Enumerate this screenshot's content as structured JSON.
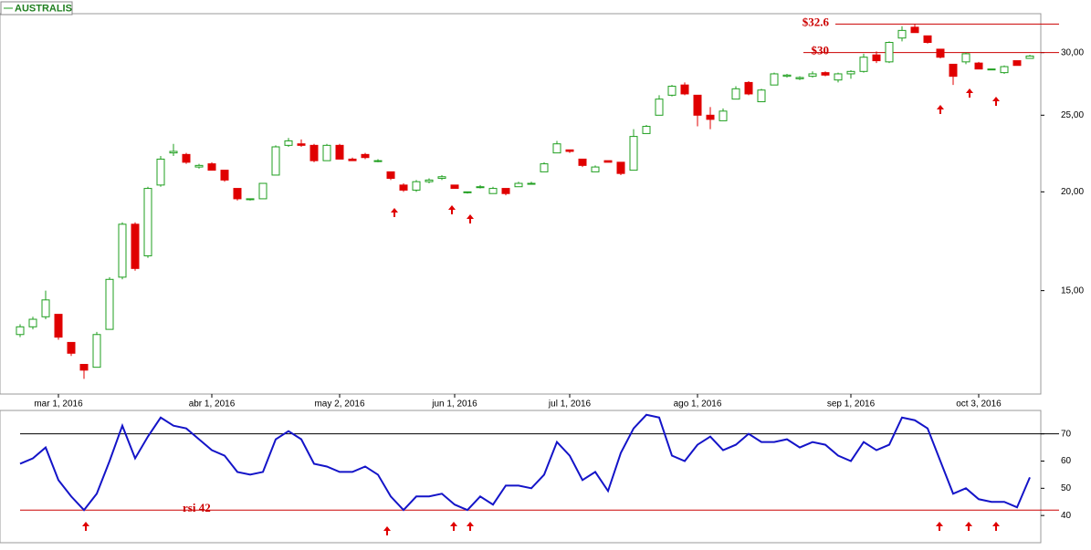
{
  "chart_data": [
    {
      "type": "candlestick",
      "name": "AUSTRALIS",
      "log_scale": true,
      "up_color": "#1f9f1f",
      "down_color": "#e00000",
      "categories": [
        null,
        null,
        null,
        "mar 1, 2016",
        null,
        null,
        null,
        null,
        null,
        null,
        null,
        null,
        null,
        null,
        null,
        "abr 1, 2016",
        null,
        null,
        null,
        null,
        null,
        null,
        null,
        null,
        null,
        "may 2, 2016",
        null,
        null,
        null,
        null,
        null,
        null,
        null,
        null,
        "jun 1, 2016",
        null,
        null,
        null,
        null,
        null,
        null,
        null,
        null,
        "jul 1, 2016",
        null,
        null,
        null,
        null,
        null,
        null,
        null,
        null,
        null,
        "ago 1, 2016",
        null,
        null,
        null,
        null,
        null,
        null,
        null,
        null,
        null,
        null,
        null,
        "sep 1, 2016",
        null,
        null,
        null,
        null,
        null,
        null,
        null,
        null,
        null,
        "oct 3, 2016",
        null,
        null,
        null,
        null
      ],
      "open": [
        13.2,
        13.5,
        13.9,
        14.0,
        12.9,
        12.1,
        12.0,
        13.4,
        15.6,
        18.2,
        16.6,
        20.4,
        22.4,
        22.3,
        21.5,
        21.7,
        21.3,
        20.2,
        19.6,
        19.6,
        21.0,
        22.9,
        23.0,
        22.9,
        21.9,
        22.9,
        22.0,
        22.3,
        21.9,
        21.2,
        20.4,
        20.1,
        20.6,
        20.8,
        20.4,
        20.0,
        20.3,
        19.9,
        20.2,
        20.3,
        20.5,
        21.2,
        22.4,
        22.6,
        22.0,
        21.2,
        21.9,
        21.8,
        21.3,
        23.7,
        25.0,
        26.5,
        27.3,
        26.5,
        25.0,
        24.6,
        26.2,
        27.5,
        26.0,
        27.3,
        28.0,
        27.8,
        28.0,
        28.3,
        27.7,
        28.2,
        28.4,
        29.8,
        29.2,
        31.3,
        32.3,
        31.5,
        30.3,
        29.0,
        29.2,
        29.1,
        28.6,
        28.3,
        29.3,
        29.5
      ],
      "high": [
        13.6,
        13.9,
        15.0,
        14.0,
        12.9,
        12.1,
        13.3,
        15.6,
        18.3,
        18.3,
        20.3,
        22.2,
        23.0,
        22.4,
        21.7,
        21.8,
        21.3,
        20.2,
        19.6,
        20.5,
        22.9,
        23.4,
        23.3,
        23.0,
        23.0,
        23.0,
        22.1,
        22.4,
        22.0,
        21.2,
        20.5,
        20.7,
        20.8,
        21.0,
        20.4,
        20.0,
        20.4,
        20.3,
        20.2,
        20.6,
        20.6,
        21.8,
        23.2,
        22.6,
        22.0,
        21.6,
        21.9,
        21.8,
        24.0,
        24.3,
        26.5,
        27.3,
        27.5,
        26.5,
        25.6,
        25.5,
        27.2,
        27.6,
        27.0,
        28.3,
        28.2,
        28.0,
        28.4,
        28.4,
        28.3,
        28.5,
        29.9,
        30.1,
        31.0,
        32.4,
        32.6,
        31.5,
        30.3,
        29.0,
        30.0,
        29.2,
        28.6,
        28.9,
        29.3,
        29.8
      ],
      "low": [
        13.1,
        13.4,
        13.8,
        13.0,
        12.4,
        11.6,
        12.0,
        13.4,
        15.5,
        15.9,
        16.5,
        20.3,
        22.2,
        21.7,
        21.4,
        21.3,
        20.6,
        19.5,
        19.5,
        19.6,
        21.0,
        22.8,
        22.8,
        21.8,
        21.9,
        22.0,
        21.9,
        22.0,
        21.8,
        20.7,
        20.0,
        20.0,
        20.5,
        20.7,
        20.2,
        19.9,
        20.2,
        19.9,
        19.8,
        20.3,
        20.5,
        21.2,
        22.4,
        22.4,
        21.5,
        21.2,
        21.8,
        21.0,
        21.3,
        23.7,
        25.0,
        26.4,
        26.5,
        24.2,
        24.0,
        24.6,
        26.2,
        26.5,
        26.0,
        27.3,
        27.9,
        27.7,
        27.9,
        28.0,
        27.5,
        27.8,
        28.3,
        29.1,
        29.1,
        31.0,
        31.8,
        30.8,
        29.5,
        27.3,
        29.0,
        28.6,
        28.6,
        28.2,
        28.9,
        29.5
      ],
      "close": [
        13.5,
        13.8,
        14.6,
        13.1,
        12.5,
        11.9,
        13.2,
        15.5,
        18.2,
        16.0,
        20.2,
        22.0,
        22.5,
        21.8,
        21.6,
        21.3,
        20.7,
        19.6,
        19.6,
        20.5,
        22.8,
        23.2,
        22.9,
        21.9,
        22.9,
        22.0,
        21.9,
        22.1,
        21.9,
        20.8,
        20.1,
        20.6,
        20.7,
        20.9,
        20.2,
        20.0,
        20.3,
        20.2,
        19.9,
        20.5,
        20.5,
        21.7,
        23.0,
        22.5,
        21.6,
        21.5,
        21.8,
        21.1,
        23.5,
        24.2,
        26.2,
        27.2,
        26.6,
        25.0,
        24.7,
        25.3,
        27.0,
        26.6,
        26.9,
        28.2,
        28.1,
        27.9,
        28.2,
        28.1,
        28.2,
        28.4,
        29.6,
        29.3,
        30.9,
        32.0,
        31.8,
        30.9,
        29.6,
        28.0,
        29.9,
        28.6,
        28.6,
        28.8,
        28.9,
        29.7
      ],
      "ylim": [
        11.1,
        33.6
      ],
      "yticks": [
        {
          "value": 15,
          "label": "15,00"
        },
        {
          "value": 20,
          "label": "20,00"
        },
        {
          "value": 25,
          "label": "25,00"
        },
        {
          "value": 30,
          "label": "30,00"
        }
      ],
      "hlines": [
        {
          "value": 32.6,
          "label": "$32.6",
          "color": "#cc0000"
        },
        {
          "value": 30,
          "label": "$30",
          "color": "#cc0000"
        }
      ]
    },
    {
      "type": "line",
      "values": [
        59,
        61,
        65,
        53,
        47,
        42,
        48,
        60,
        73,
        61,
        69,
        76,
        73,
        72,
        68,
        64,
        62,
        56,
        55,
        56,
        68,
        71,
        68,
        59,
        58,
        56,
        56,
        58,
        55,
        47,
        42,
        47,
        47,
        48,
        44,
        42,
        47,
        44,
        51,
        51,
        50,
        55,
        67,
        62,
        53,
        56,
        49,
        63,
        72,
        77,
        76,
        62,
        60,
        66,
        69,
        64,
        66,
        70,
        67,
        67,
        68,
        65,
        67,
        66,
        62,
        60,
        67,
        64,
        66,
        76,
        75,
        72,
        60,
        48,
        50,
        46,
        45,
        45,
        43,
        54
      ],
      "color": "#1414c8",
      "ylim": [
        30,
        78.6
      ],
      "yticks": [
        40,
        50,
        60,
        70
      ],
      "hlines": [
        {
          "value": 70,
          "color": "#000000"
        },
        {
          "value": 42,
          "label": "rsi 42",
          "color": "#cc0000"
        }
      ]
    }
  ]
}
